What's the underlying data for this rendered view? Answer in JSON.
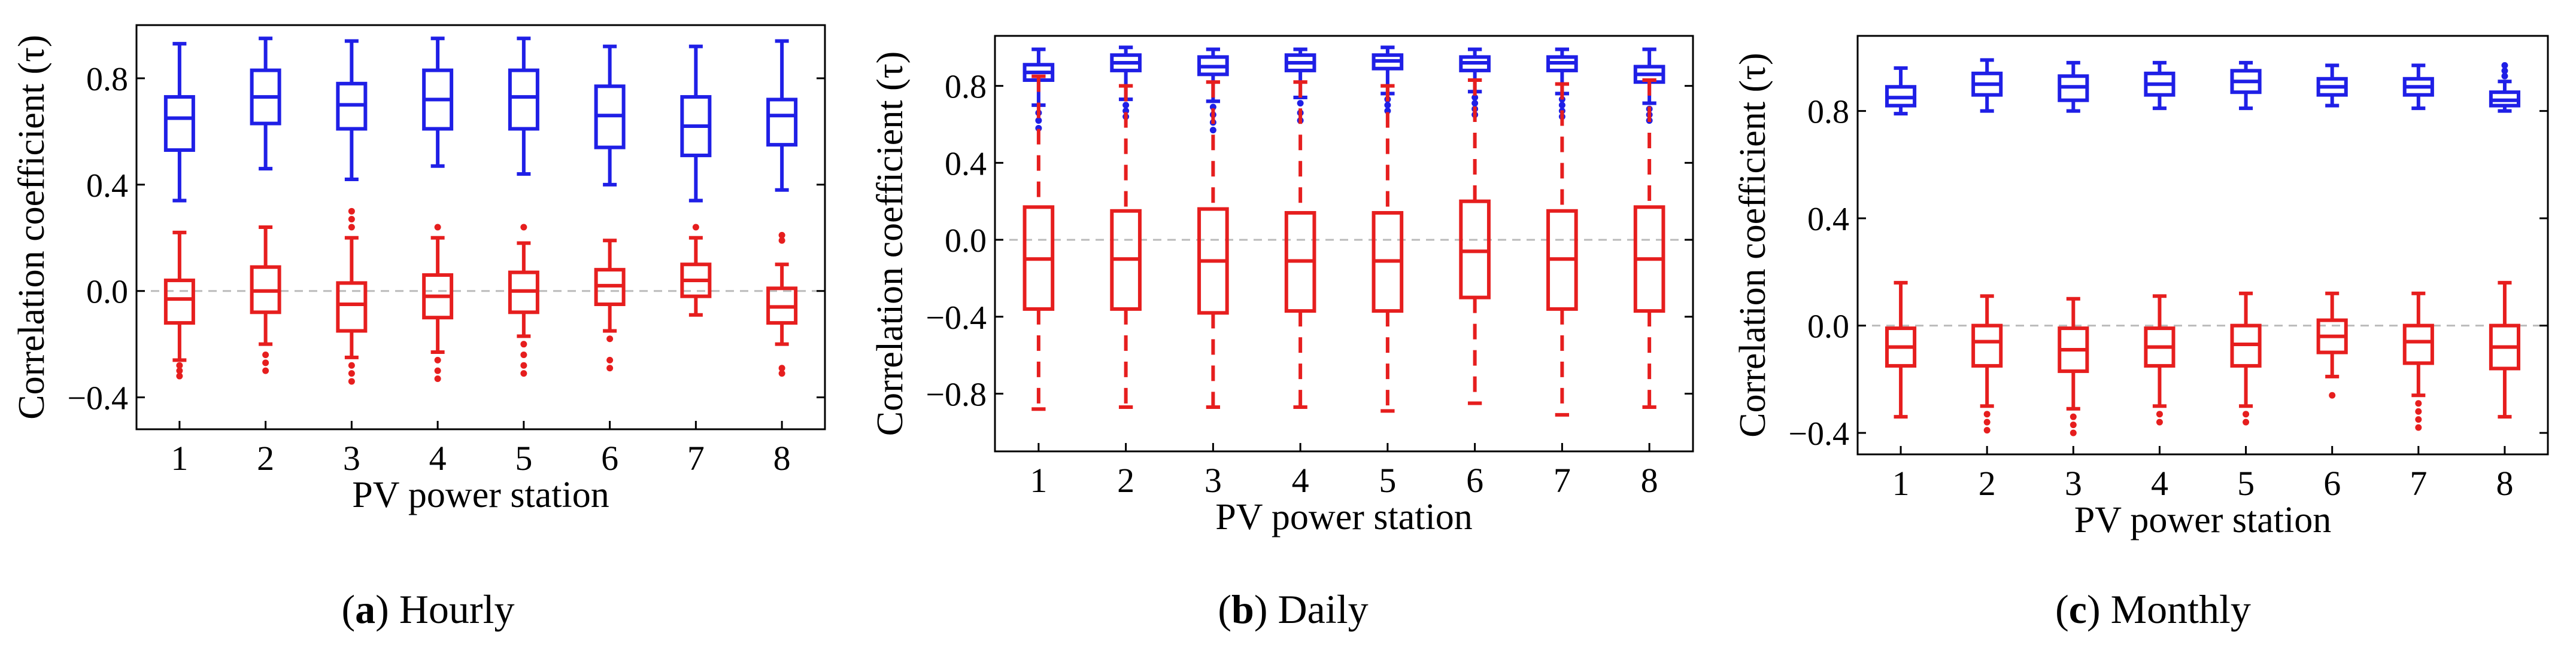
{
  "figure": {
    "colors": {
      "blue": "#1f1fe6",
      "red": "#e61e1e",
      "zero_line": "#bbbbbb"
    }
  },
  "chart_data": [
    {
      "type": "box",
      "caption_letter": "a",
      "caption_text": "Hourly",
      "xlabel": "PV power station",
      "ylabel": "Correlation coefficient (τ)",
      "ylim": [
        -0.52,
        1.0
      ],
      "yticks": [
        -0.4,
        0.0,
        0.4,
        0.8
      ],
      "ytick_labels": [
        "−0.4",
        "0.0",
        "0.4",
        "0.8"
      ],
      "categories": [
        "1",
        "2",
        "3",
        "4",
        "5",
        "6",
        "7",
        "8"
      ],
      "zero_line": true,
      "series": [
        {
          "name": "blue",
          "color": "#1f1fe6",
          "whisker_style": "solid",
          "boxes": [
            {
              "whislo": 0.34,
              "q1": 0.53,
              "med": 0.65,
              "q3": 0.73,
              "whishi": 0.93,
              "fliers": []
            },
            {
              "whislo": 0.46,
              "q1": 0.63,
              "med": 0.73,
              "q3": 0.83,
              "whishi": 0.95,
              "fliers": []
            },
            {
              "whislo": 0.42,
              "q1": 0.61,
              "med": 0.7,
              "q3": 0.78,
              "whishi": 0.94,
              "fliers": []
            },
            {
              "whislo": 0.47,
              "q1": 0.61,
              "med": 0.72,
              "q3": 0.83,
              "whishi": 0.95,
              "fliers": []
            },
            {
              "whislo": 0.44,
              "q1": 0.61,
              "med": 0.73,
              "q3": 0.83,
              "whishi": 0.95,
              "fliers": []
            },
            {
              "whislo": 0.4,
              "q1": 0.54,
              "med": 0.66,
              "q3": 0.77,
              "whishi": 0.92,
              "fliers": []
            },
            {
              "whislo": 0.34,
              "q1": 0.51,
              "med": 0.62,
              "q3": 0.73,
              "whishi": 0.92,
              "fliers": []
            },
            {
              "whislo": 0.38,
              "q1": 0.55,
              "med": 0.66,
              "q3": 0.72,
              "whishi": 0.94,
              "fliers": []
            }
          ]
        },
        {
          "name": "red",
          "color": "#e61e1e",
          "whisker_style": "solid",
          "boxes": [
            {
              "whislo": -0.26,
              "q1": -0.12,
              "med": -0.03,
              "q3": 0.04,
              "whishi": 0.22,
              "fliers": [
                -0.28,
                -0.3,
                -0.32
              ]
            },
            {
              "whislo": -0.2,
              "q1": -0.08,
              "med": 0.0,
              "q3": 0.09,
              "whishi": 0.24,
              "fliers": [
                -0.24,
                -0.27,
                -0.3
              ]
            },
            {
              "whislo": -0.25,
              "q1": -0.15,
              "med": -0.05,
              "q3": 0.03,
              "whishi": 0.2,
              "fliers": [
                0.24,
                0.27,
                0.3,
                -0.28,
                -0.31,
                -0.34
              ]
            },
            {
              "whislo": -0.23,
              "q1": -0.1,
              "med": -0.02,
              "q3": 0.06,
              "whishi": 0.2,
              "fliers": [
                0.24,
                -0.26,
                -0.3,
                -0.33
              ]
            },
            {
              "whislo": -0.17,
              "q1": -0.08,
              "med": 0.0,
              "q3": 0.07,
              "whishi": 0.18,
              "fliers": [
                0.24,
                -0.2,
                -0.24,
                -0.28,
                -0.31
              ]
            },
            {
              "whislo": -0.15,
              "q1": -0.05,
              "med": 0.02,
              "q3": 0.08,
              "whishi": 0.19,
              "fliers": [
                -0.18,
                -0.26,
                -0.29
              ]
            },
            {
              "whislo": -0.09,
              "q1": -0.02,
              "med": 0.04,
              "q3": 0.1,
              "whishi": 0.2,
              "fliers": [
                0.24
              ]
            },
            {
              "whislo": -0.2,
              "q1": -0.12,
              "med": -0.06,
              "q3": 0.01,
              "whishi": 0.1,
              "fliers": [
                0.19,
                0.21,
                -0.29,
                -0.31
              ]
            }
          ]
        }
      ]
    },
    {
      "type": "box",
      "caption_letter": "b",
      "caption_text": "Daily",
      "xlabel": "PV power station",
      "ylabel": "Correlation coefficient (τ)",
      "ylim": [
        -1.1,
        1.06
      ],
      "yticks": [
        -0.8,
        -0.4,
        0.0,
        0.4,
        0.8
      ],
      "ytick_labels": [
        "−0.8",
        "−0.4",
        "0.0",
        "0.4",
        "0.8"
      ],
      "categories": [
        "1",
        "2",
        "3",
        "4",
        "5",
        "6",
        "7",
        "8"
      ],
      "zero_line": true,
      "series": [
        {
          "name": "blue",
          "color": "#1f1fe6",
          "whisker_style": "solid",
          "boxes": [
            {
              "whislo": 0.7,
              "q1": 0.83,
              "med": 0.87,
              "q3": 0.91,
              "whishi": 0.99,
              "fliers": [
                0.66,
                0.62,
                0.58
              ]
            },
            {
              "whislo": 0.73,
              "q1": 0.88,
              "med": 0.92,
              "q3": 0.96,
              "whishi": 1.0,
              "fliers": [
                0.7,
                0.67,
                0.64
              ]
            },
            {
              "whislo": 0.72,
              "q1": 0.86,
              "med": 0.9,
              "q3": 0.95,
              "whishi": 0.99,
              "fliers": [
                0.69,
                0.65,
                0.61,
                0.57
              ]
            },
            {
              "whislo": 0.74,
              "q1": 0.88,
              "med": 0.92,
              "q3": 0.96,
              "whishi": 0.99,
              "fliers": [
                0.71,
                0.66,
                0.62
              ]
            },
            {
              "whislo": 0.76,
              "q1": 0.89,
              "med": 0.93,
              "q3": 0.96,
              "whishi": 1.0,
              "fliers": [
                0.73,
                0.7,
                0.67
              ]
            },
            {
              "whislo": 0.77,
              "q1": 0.88,
              "med": 0.92,
              "q3": 0.95,
              "whishi": 0.99,
              "fliers": [
                0.74,
                0.71,
                0.68,
                0.65
              ]
            },
            {
              "whislo": 0.76,
              "q1": 0.88,
              "med": 0.92,
              "q3": 0.95,
              "whishi": 0.99,
              "fliers": [
                0.73,
                0.7,
                0.67,
                0.64
              ]
            },
            {
              "whislo": 0.71,
              "q1": 0.82,
              "med": 0.86,
              "q3": 0.9,
              "whishi": 0.99,
              "fliers": [
                0.68,
                0.65,
                0.62
              ]
            }
          ]
        },
        {
          "name": "red",
          "color": "#e61e1e",
          "whisker_style": "dashed",
          "boxes": [
            {
              "whislo": -0.88,
              "q1": -0.36,
              "med": -0.1,
              "q3": 0.17,
              "whishi": 0.85,
              "fliers": []
            },
            {
              "whislo": -0.87,
              "q1": -0.36,
              "med": -0.1,
              "q3": 0.15,
              "whishi": 0.8,
              "fliers": []
            },
            {
              "whislo": -0.87,
              "q1": -0.38,
              "med": -0.11,
              "q3": 0.16,
              "whishi": 0.82,
              "fliers": []
            },
            {
              "whislo": -0.87,
              "q1": -0.37,
              "med": -0.11,
              "q3": 0.14,
              "whishi": 0.82,
              "fliers": []
            },
            {
              "whislo": -0.89,
              "q1": -0.37,
              "med": -0.11,
              "q3": 0.14,
              "whishi": 0.8,
              "fliers": []
            },
            {
              "whislo": -0.85,
              "q1": -0.3,
              "med": -0.06,
              "q3": 0.2,
              "whishi": 0.83,
              "fliers": []
            },
            {
              "whislo": -0.91,
              "q1": -0.36,
              "med": -0.1,
              "q3": 0.15,
              "whishi": 0.81,
              "fliers": []
            },
            {
              "whislo": -0.87,
              "q1": -0.37,
              "med": -0.1,
              "q3": 0.17,
              "whishi": 0.83,
              "fliers": []
            }
          ]
        }
      ]
    },
    {
      "type": "box",
      "caption_letter": "c",
      "caption_text": "Monthly",
      "xlabel": "PV power station",
      "ylabel": "Correlation coefficient (τ)",
      "ylim": [
        -0.48,
        1.08
      ],
      "yticks": [
        -0.4,
        0.0,
        0.4,
        0.8
      ],
      "ytick_labels": [
        "−0.4",
        "0.0",
        "0.4",
        "0.8"
      ],
      "categories": [
        "1",
        "2",
        "3",
        "4",
        "5",
        "6",
        "7",
        "8"
      ],
      "zero_line": true,
      "series": [
        {
          "name": "blue",
          "color": "#1f1fe6",
          "whisker_style": "solid",
          "boxes": [
            {
              "whislo": 0.79,
              "q1": 0.82,
              "med": 0.85,
              "q3": 0.89,
              "whishi": 0.96,
              "fliers": []
            },
            {
              "whislo": 0.8,
              "q1": 0.86,
              "med": 0.9,
              "q3": 0.94,
              "whishi": 0.99,
              "fliers": []
            },
            {
              "whislo": 0.8,
              "q1": 0.84,
              "med": 0.89,
              "q3": 0.93,
              "whishi": 0.98,
              "fliers": []
            },
            {
              "whislo": 0.81,
              "q1": 0.86,
              "med": 0.9,
              "q3": 0.94,
              "whishi": 0.98,
              "fliers": []
            },
            {
              "whislo": 0.81,
              "q1": 0.87,
              "med": 0.91,
              "q3": 0.95,
              "whishi": 0.98,
              "fliers": []
            },
            {
              "whislo": 0.82,
              "q1": 0.86,
              "med": 0.89,
              "q3": 0.92,
              "whishi": 0.97,
              "fliers": []
            },
            {
              "whislo": 0.81,
              "q1": 0.86,
              "med": 0.89,
              "q3": 0.92,
              "whishi": 0.97,
              "fliers": []
            },
            {
              "whislo": 0.8,
              "q1": 0.82,
              "med": 0.84,
              "q3": 0.87,
              "whishi": 0.91,
              "fliers": [
                0.93,
                0.95,
                0.97
              ]
            }
          ]
        },
        {
          "name": "red",
          "color": "#e61e1e",
          "whisker_style": "solid",
          "boxes": [
            {
              "whislo": -0.34,
              "q1": -0.15,
              "med": -0.08,
              "q3": -0.01,
              "whishi": 0.16,
              "fliers": []
            },
            {
              "whislo": -0.3,
              "q1": -0.15,
              "med": -0.06,
              "q3": 0.0,
              "whishi": 0.11,
              "fliers": [
                -0.33,
                -0.36,
                -0.39
              ]
            },
            {
              "whislo": -0.31,
              "q1": -0.17,
              "med": -0.09,
              "q3": -0.01,
              "whishi": 0.1,
              "fliers": [
                -0.34,
                -0.37,
                -0.4
              ]
            },
            {
              "whislo": -0.3,
              "q1": -0.15,
              "med": -0.08,
              "q3": -0.01,
              "whishi": 0.11,
              "fliers": [
                -0.33,
                -0.36
              ]
            },
            {
              "whislo": -0.3,
              "q1": -0.15,
              "med": -0.07,
              "q3": 0.0,
              "whishi": 0.12,
              "fliers": [
                -0.33,
                -0.36
              ]
            },
            {
              "whislo": -0.19,
              "q1": -0.1,
              "med": -0.04,
              "q3": 0.02,
              "whishi": 0.12,
              "fliers": [
                -0.26
              ]
            },
            {
              "whislo": -0.26,
              "q1": -0.14,
              "med": -0.06,
              "q3": 0.0,
              "whishi": 0.12,
              "fliers": [
                -0.29,
                -0.32,
                -0.35,
                -0.38
              ]
            },
            {
              "whislo": -0.34,
              "q1": -0.16,
              "med": -0.08,
              "q3": 0.0,
              "whishi": 0.16,
              "fliers": []
            }
          ]
        }
      ]
    }
  ]
}
